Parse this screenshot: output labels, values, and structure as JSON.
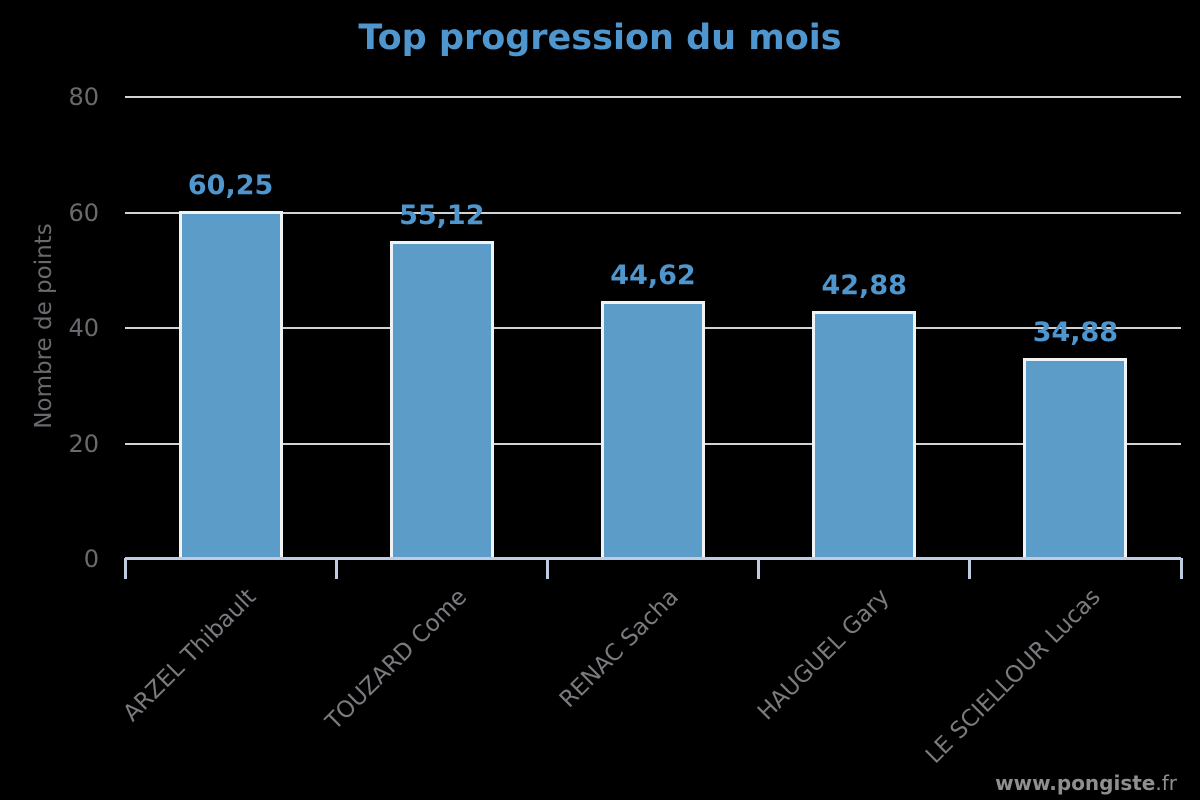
{
  "chart_data": {
    "type": "bar",
    "title": "Top progression du mois",
    "ylabel": "Nombre de points",
    "xlabel": "",
    "categories": [
      "ARZEL Thibault",
      "TOUZARD Come",
      "RENAC Sacha",
      "HAUGUEL Gary",
      "LE SCIELLOUR Lucas"
    ],
    "values": [
      60.25,
      55.12,
      44.62,
      42.88,
      34.88
    ],
    "value_labels": [
      "60,25",
      "55,12",
      "44,62",
      "42,88",
      "34,88"
    ],
    "yticks": [
      0,
      20,
      40,
      60,
      80
    ],
    "ylim": [
      0,
      80
    ],
    "grid": true,
    "legend_position": "none",
    "colors": {
      "background": "#000000",
      "bar_fill": "#5b9cc9",
      "bar_border": "#f0f3f6",
      "title": "#4e96cd",
      "value_label": "#4e96cd",
      "grid_line": "#d2d2d2",
      "axis_line": "#bdcce0",
      "y_tick_label": "#6a6a6e",
      "category_label": "#7b7b7f",
      "watermark": "#8f8f8f"
    }
  },
  "watermark": {
    "bold": "www.pongiste",
    "regular": ".fr"
  }
}
